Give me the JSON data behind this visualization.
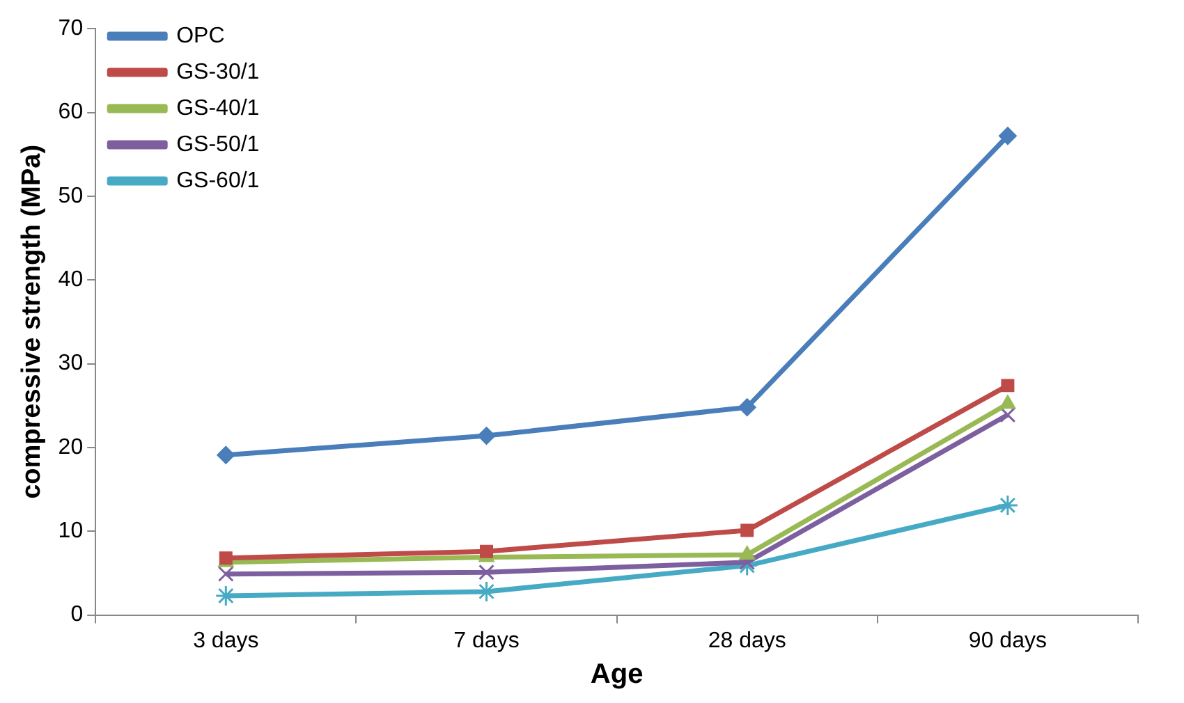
{
  "chart_data": {
    "type": "line",
    "xlabel": "Age",
    "ylabel": "compressive strength (MPa)",
    "categories": [
      "3 days",
      "7 days",
      "28 days",
      "90 days"
    ],
    "series": [
      {
        "name": "OPC",
        "color": "#4a7ebb",
        "marker": "diamond",
        "values": [
          19.1,
          21.4,
          24.8,
          57.2
        ]
      },
      {
        "name": "GS-30/1",
        "color": "#be4b48",
        "marker": "square",
        "values": [
          6.8,
          7.6,
          10.1,
          27.4
        ]
      },
      {
        "name": "GS-40/1",
        "color": "#98b954",
        "marker": "triangle",
        "values": [
          6.3,
          6.9,
          7.2,
          25.2
        ]
      },
      {
        "name": "GS-50/1",
        "color": "#7d5fa0",
        "marker": "cross",
        "values": [
          4.9,
          5.1,
          6.3,
          23.9
        ]
      },
      {
        "name": "GS-60/1",
        "color": "#46aac5",
        "marker": "cross",
        "values": [
          2.3,
          2.8,
          5.9,
          13.1
        ]
      }
    ],
    "ylim": [
      0,
      70
    ],
    "yticks": [
      0,
      10,
      20,
      30,
      40,
      50,
      60,
      70
    ],
    "grid": false,
    "legend": "top left",
    "line_style": "solid"
  }
}
